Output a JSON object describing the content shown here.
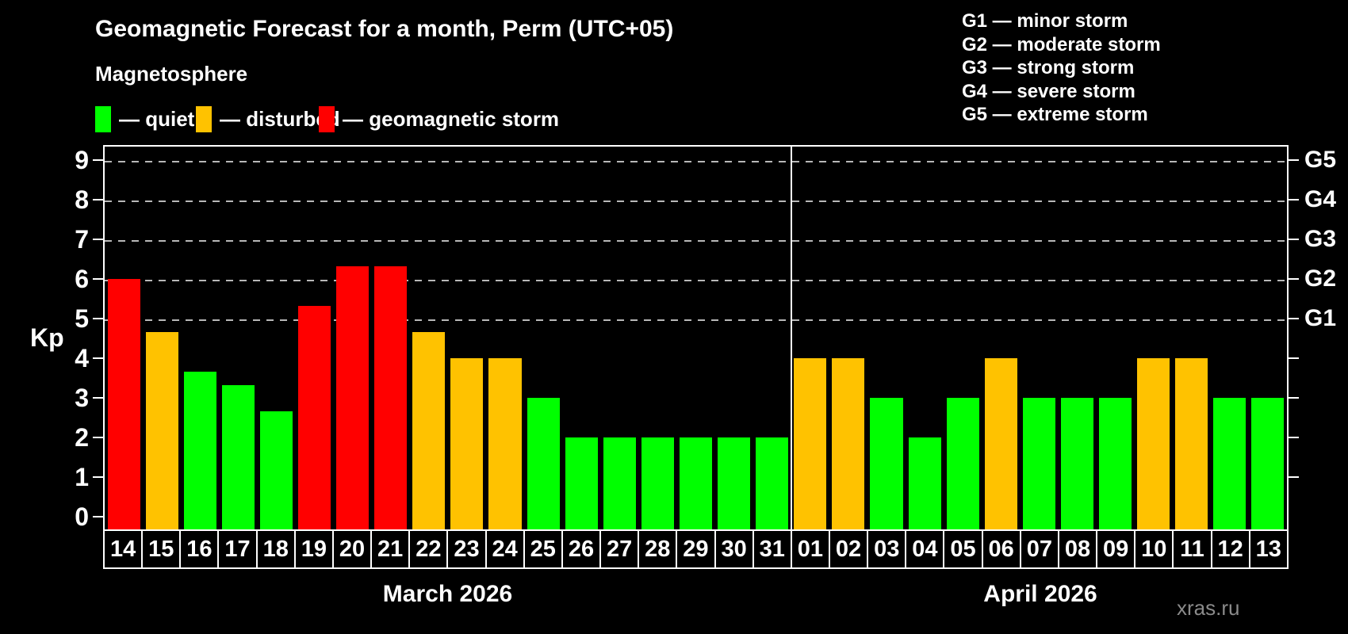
{
  "title": "Geomagnetic Forecast for a month, Perm (UTC+05)",
  "subtitle": "Magnetosphere",
  "legend": {
    "quiet": {
      "label": "— quiet",
      "color": "#00ff00"
    },
    "disturbed": {
      "label": "— disturbed",
      "color": "#ffc200"
    },
    "storm": {
      "label": "— geomagnetic storm",
      "color": "#ff0000"
    }
  },
  "storm_scale_legend": [
    "G1 — minor storm",
    "G2 — moderate storm",
    "G3 — strong storm",
    "G4 — severe storm",
    "G5 — extreme storm"
  ],
  "watermark": "xras.ru",
  "chart_data": {
    "type": "bar",
    "ylabel": "Kp",
    "ylim": [
      0,
      9.4
    ],
    "yticks": [
      0,
      1,
      2,
      3,
      4,
      5,
      6,
      7,
      8,
      9
    ],
    "gridlines_at_kp": [
      5,
      6,
      7,
      8,
      9
    ],
    "grid": "dashed horizontal at storm levels only",
    "legend_position": "top",
    "right_axis": [
      {
        "kp": 5,
        "label": "G1"
      },
      {
        "kp": 6,
        "label": "G2"
      },
      {
        "kp": 7,
        "label": "G3"
      },
      {
        "kp": 8,
        "label": "G4"
      },
      {
        "kp": 9,
        "label": "G5"
      }
    ],
    "status_colors": {
      "quiet": "#00ff00",
      "disturbed": "#ffc200",
      "storm": "#ff0000"
    },
    "groups": [
      {
        "month": "March 2026",
        "bars": [
          {
            "day": "14",
            "kp": 6.0,
            "status": "storm"
          },
          {
            "day": "15",
            "kp": 4.67,
            "status": "disturbed"
          },
          {
            "day": "16",
            "kp": 3.67,
            "status": "quiet"
          },
          {
            "day": "17",
            "kp": 3.33,
            "status": "quiet"
          },
          {
            "day": "18",
            "kp": 2.67,
            "status": "quiet"
          },
          {
            "day": "19",
            "kp": 5.33,
            "status": "storm"
          },
          {
            "day": "20",
            "kp": 6.33,
            "status": "storm"
          },
          {
            "day": "21",
            "kp": 6.33,
            "status": "storm"
          },
          {
            "day": "22",
            "kp": 4.67,
            "status": "disturbed"
          },
          {
            "day": "23",
            "kp": 4.0,
            "status": "disturbed"
          },
          {
            "day": "24",
            "kp": 4.0,
            "status": "disturbed"
          },
          {
            "day": "25",
            "kp": 3.0,
            "status": "quiet"
          },
          {
            "day": "26",
            "kp": 2.0,
            "status": "quiet"
          },
          {
            "day": "27",
            "kp": 2.0,
            "status": "quiet"
          },
          {
            "day": "28",
            "kp": 2.0,
            "status": "quiet"
          },
          {
            "day": "29",
            "kp": 2.0,
            "status": "quiet"
          },
          {
            "day": "30",
            "kp": 2.0,
            "status": "quiet"
          },
          {
            "day": "31",
            "kp": 2.0,
            "status": "quiet"
          }
        ]
      },
      {
        "month": "April 2026",
        "bars": [
          {
            "day": "01",
            "kp": 4.0,
            "status": "disturbed"
          },
          {
            "day": "02",
            "kp": 4.0,
            "status": "disturbed"
          },
          {
            "day": "03",
            "kp": 3.0,
            "status": "quiet"
          },
          {
            "day": "04",
            "kp": 2.0,
            "status": "quiet"
          },
          {
            "day": "05",
            "kp": 3.0,
            "status": "quiet"
          },
          {
            "day": "06",
            "kp": 4.0,
            "status": "disturbed"
          },
          {
            "day": "07",
            "kp": 3.0,
            "status": "quiet"
          },
          {
            "day": "08",
            "kp": 3.0,
            "status": "quiet"
          },
          {
            "day": "09",
            "kp": 3.0,
            "status": "quiet"
          },
          {
            "day": "10",
            "kp": 4.0,
            "status": "disturbed"
          },
          {
            "day": "11",
            "kp": 4.0,
            "status": "disturbed"
          },
          {
            "day": "12",
            "kp": 3.0,
            "status": "quiet"
          },
          {
            "day": "13",
            "kp": 3.0,
            "status": "quiet"
          }
        ]
      }
    ]
  }
}
